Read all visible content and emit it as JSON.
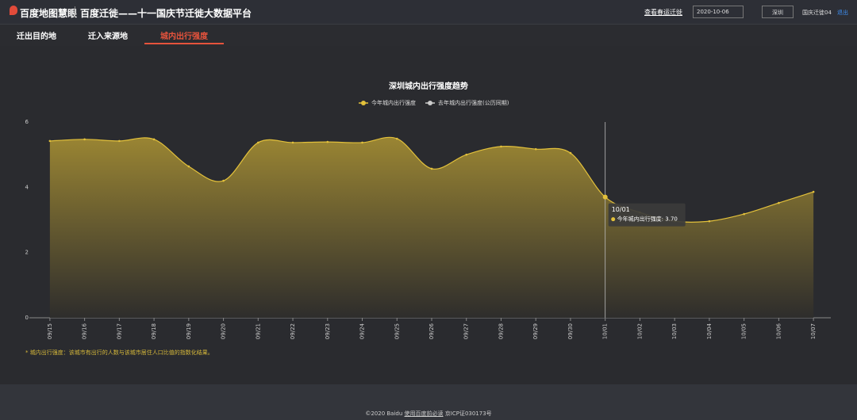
{
  "header": {
    "logo": "百度地图慧眼",
    "title": "百度迁徙——十一国庆节迁徙大数据平台",
    "link": "查看春运迁徙",
    "date": "2020-10-06",
    "city": "深圳",
    "user": "国庆迁徙04",
    "logout": "退出"
  },
  "tabs": [
    "迁出目的地",
    "迁入来源地",
    "城内出行强度"
  ],
  "active_tab": 2,
  "chart_data": {
    "type": "line",
    "title": "深圳城内出行强度趋势",
    "categories": [
      "09/15",
      "09/16",
      "09/17",
      "09/18",
      "09/19",
      "09/20",
      "09/21",
      "09/22",
      "09/23",
      "09/24",
      "09/25",
      "09/26",
      "09/27",
      "09/28",
      "09/29",
      "09/30",
      "10/01",
      "10/02",
      "10/03",
      "10/04",
      "10/05",
      "10/06",
      "10/07"
    ],
    "series": [
      {
        "name": "今年城内出行强度",
        "color": "#e3c13b",
        "values": [
          5.42,
          5.47,
          5.42,
          5.47,
          4.64,
          4.2,
          5.37,
          5.37,
          5.39,
          5.37,
          5.49,
          4.57,
          5.0,
          5.25,
          5.17,
          5.05,
          3.7,
          3.23,
          2.96,
          2.96,
          3.18,
          3.52,
          3.86
        ]
      },
      {
        "name": "去年城内出行强度(公历同期)",
        "color": "#cccccc",
        "values": [
          null,
          null,
          null,
          null,
          null,
          null,
          null,
          null,
          null,
          null,
          null,
          null,
          null,
          null,
          null,
          null,
          null,
          null,
          null,
          null,
          null,
          null,
          null
        ]
      }
    ],
    "ylim": [
      0,
      6
    ],
    "yticks": [
      0,
      2,
      4,
      6
    ],
    "grid": false,
    "area": true,
    "tooltip": {
      "x": "10/01",
      "text": "今年城内出行强度: 3.70"
    },
    "note": "* 城内出行强度：该城市有出行的人数与该城市居住人口比值的指数化结果。"
  },
  "footer": {
    "copyright": "©2020 Baidu",
    "link": "使用百度前必读",
    "icp": "京ICP证030173号"
  }
}
